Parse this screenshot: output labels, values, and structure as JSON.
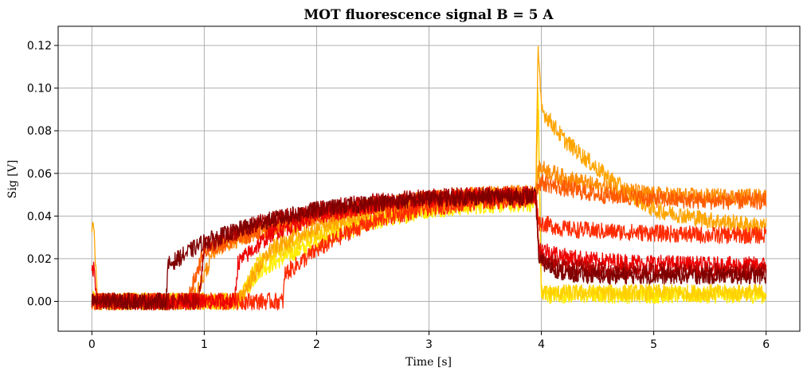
{
  "chart_data": {
    "type": "line",
    "title": "MOT fluorescence signal B = 5 A",
    "xlabel": "Time [s]",
    "ylabel": "Sig [V]",
    "xlim": [
      -0.3,
      6.3
    ],
    "ylim": [
      -0.014,
      0.129
    ],
    "xticks": [
      0,
      1,
      2,
      3,
      4,
      5,
      6
    ],
    "xtick_labels": [
      "0",
      "1",
      "2",
      "3",
      "4",
      "5",
      "6"
    ],
    "yticks": [
      0.0,
      0.02,
      0.04,
      0.06,
      0.08,
      0.1,
      0.12
    ],
    "ytick_labels": [
      "0.00",
      "0.02",
      "0.04",
      "0.06",
      "0.08",
      "0.10",
      "0.12"
    ],
    "grid": true,
    "legend": "none",
    "series": [
      {
        "color": "#ffee00",
        "x": [
          0,
          0.05,
          1.3,
          1.5,
          2.0,
          2.5,
          3.0,
          3.5,
          3.95,
          3.97,
          4.0,
          4.5,
          5.0,
          5.5,
          6.0
        ],
        "y": [
          0.001,
          0.0,
          0.0,
          0.015,
          0.028,
          0.037,
          0.043,
          0.045,
          0.046,
          0.106,
          0.003,
          0.003,
          0.003,
          0.003,
          0.003
        ]
      },
      {
        "color": "#ffd000",
        "x": [
          0,
          0.05,
          1.3,
          1.5,
          2.0,
          2.5,
          3.0,
          3.5,
          3.95,
          3.97,
          4.0,
          4.5,
          5.0,
          5.5,
          6.0
        ],
        "y": [
          0.001,
          0.0,
          0.0,
          0.02,
          0.032,
          0.04,
          0.045,
          0.047,
          0.048,
          0.095,
          0.004,
          0.004,
          0.004,
          0.004,
          0.004
        ]
      },
      {
        "color": "#ffa500",
        "x": [
          0,
          0.02,
          0.05,
          1.0,
          1.3,
          1.6,
          2.0,
          2.5,
          3.0,
          3.5,
          3.95,
          3.97,
          4.0,
          4.2,
          4.5,
          4.8,
          5.0,
          5.5,
          6.0
        ],
        "y": [
          0.034,
          0.033,
          0.0,
          0.0,
          0.0,
          0.025,
          0.035,
          0.042,
          0.046,
          0.049,
          0.05,
          0.12,
          0.09,
          0.076,
          0.062,
          0.05,
          0.043,
          0.038,
          0.035
        ]
      },
      {
        "color": "#ff8c00",
        "x": [
          0,
          0.9,
          1.1,
          1.5,
          2.0,
          2.5,
          3.0,
          3.5,
          3.95,
          3.98,
          4.2,
          4.5,
          5.0,
          5.5,
          6.0
        ],
        "y": [
          0.0,
          0.0,
          0.025,
          0.033,
          0.04,
          0.045,
          0.048,
          0.05,
          0.051,
          0.063,
          0.058,
          0.054,
          0.05,
          0.049,
          0.049
        ]
      },
      {
        "color": "#ff5a00",
        "x": [
          0,
          0.85,
          1.0,
          1.5,
          2.0,
          2.5,
          3.0,
          3.5,
          3.95,
          3.98,
          4.2,
          4.5,
          5.0,
          5.5,
          6.0
        ],
        "y": [
          0.0,
          0.0,
          0.024,
          0.033,
          0.04,
          0.045,
          0.048,
          0.05,
          0.05,
          0.056,
          0.053,
          0.05,
          0.048,
          0.047,
          0.047
        ]
      },
      {
        "color": "#ff2a00",
        "x": [
          0,
          1.7,
          1.72,
          2.0,
          2.3,
          2.6,
          3.0,
          3.5,
          3.95,
          3.98,
          4.2,
          4.5,
          5.0,
          5.5,
          6.0
        ],
        "y": [
          0.0,
          0.0,
          0.013,
          0.024,
          0.033,
          0.039,
          0.044,
          0.047,
          0.048,
          0.037,
          0.034,
          0.033,
          0.032,
          0.031,
          0.031
        ]
      },
      {
        "color": "#ee0000",
        "x": [
          0,
          0.02,
          0.05,
          1.27,
          1.3,
          1.6,
          2.0,
          2.5,
          3.0,
          3.5,
          3.95,
          3.98,
          4.2,
          4.5,
          5.0,
          5.5,
          6.0
        ],
        "y": [
          0.016,
          0.015,
          0.0,
          0.0,
          0.018,
          0.032,
          0.04,
          0.045,
          0.048,
          0.05,
          0.05,
          0.025,
          0.021,
          0.019,
          0.018,
          0.017,
          0.017
        ]
      },
      {
        "color": "#b00000",
        "x": [
          0,
          0.95,
          1.0,
          1.5,
          2.0,
          2.5,
          3.0,
          3.5,
          3.95,
          3.98,
          4.2,
          4.5,
          5.0,
          5.5,
          6.0
        ],
        "y": [
          0.0,
          0.0,
          0.026,
          0.037,
          0.043,
          0.047,
          0.049,
          0.05,
          0.05,
          0.021,
          0.016,
          0.015,
          0.014,
          0.014,
          0.014
        ]
      },
      {
        "color": "#800000",
        "x": [
          0,
          0.66,
          0.68,
          1.0,
          1.5,
          2.0,
          2.5,
          3.0,
          3.5,
          3.95,
          3.98,
          4.2,
          4.5,
          5.0,
          5.5,
          6.0
        ],
        "y": [
          0.0,
          0.0,
          0.017,
          0.028,
          0.037,
          0.043,
          0.046,
          0.048,
          0.049,
          0.049,
          0.019,
          0.013,
          0.012,
          0.012,
          0.012,
          0.012
        ]
      }
    ]
  }
}
